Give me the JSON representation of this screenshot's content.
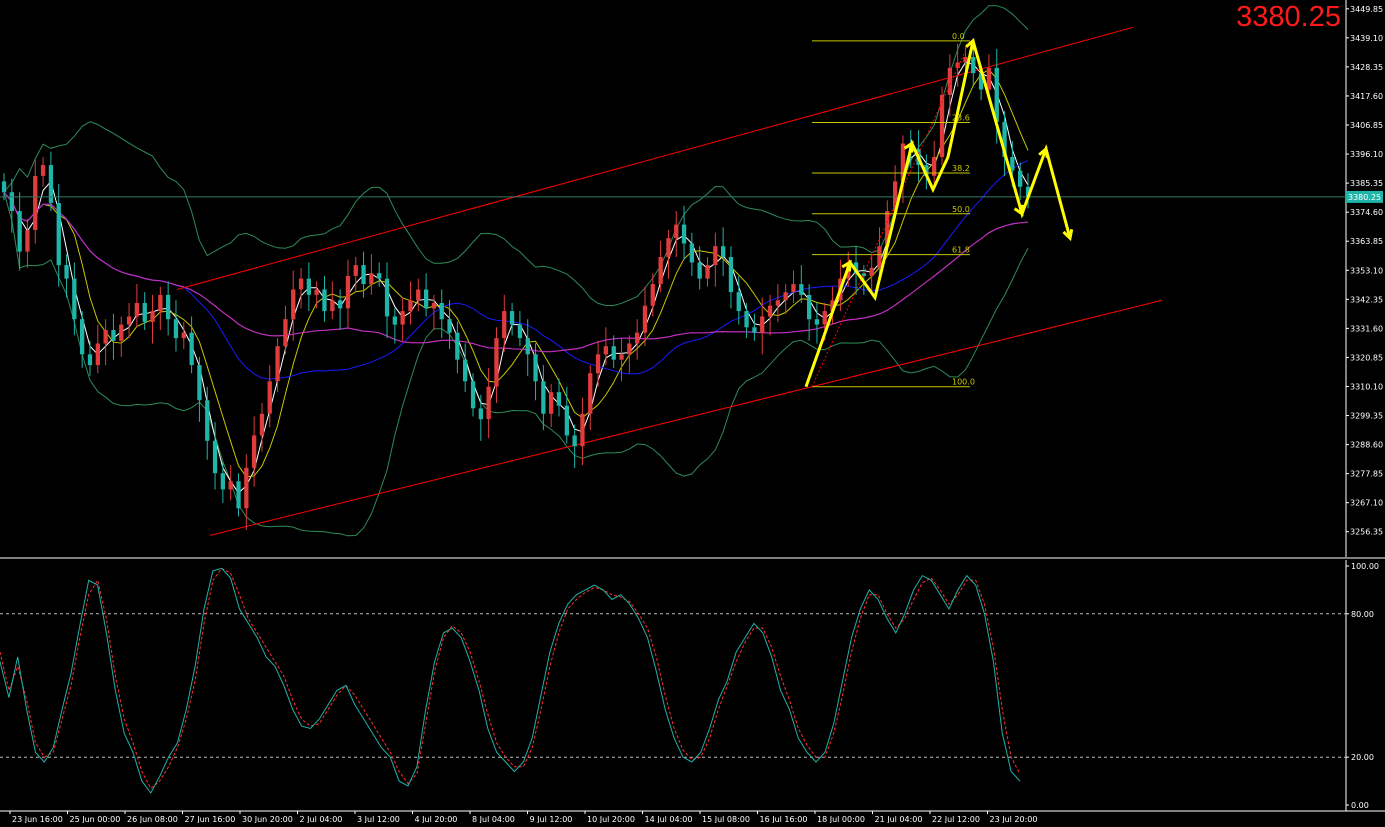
{
  "price_display": "3380.25",
  "current_price_label": "3380.25",
  "colors": {
    "background": "#000000",
    "bull_candle": "#e03c3c",
    "bear_candle": "#1fb5a8",
    "channel": "#ff0000",
    "fib": "#c8c800",
    "bollinger": "#2e8b57",
    "ma_fast": "#ffffff",
    "ma_mid": "#c8c800",
    "ma_blue": "#1a1aff",
    "ma_magenta": "#c030c0",
    "forecast_arrow": "#ffff00",
    "stoch_main": "#20b2aa",
    "stoch_signal": "#ff3030"
  },
  "chart_data": [
    {
      "type": "candlestick",
      "title": "",
      "price_axis_ticks": [
        "3449.85",
        "3439.10",
        "3428.35",
        "3417.60",
        "3406.85",
        "3396.10",
        "3385.35",
        "3374.60",
        "3363.85",
        "3353.10",
        "3342.35",
        "3331.60",
        "3320.85",
        "3310.10",
        "3299.35",
        "3288.60",
        "3277.85",
        "3267.10",
        "3256.35"
      ],
      "ylim": [
        3247,
        3452
      ],
      "time_axis_labels": [
        "23 Jun 16:00",
        "25 Jun 00:00",
        "26 Jun 08:00",
        "27 Jun 16:00",
        "30 Jun 20:00",
        "2 Jul 04:00",
        "3 Jul 12:00",
        "4 Jul 20:00",
        "8 Jul 04:00",
        "9 Jul 12:00",
        "10 Jul 20:00",
        "14 Jul 04:00",
        "15 Jul 08:00",
        "16 Jul 16:00",
        "18 Jul 00:00",
        "21 Jul 04:00",
        "22 Jul 12:00",
        "23 Jul 20:00"
      ],
      "close": [
        3382,
        3375,
        3360,
        3368,
        3388,
        3392,
        3378,
        3355,
        3350,
        3335,
        3322,
        3318,
        3326,
        3331,
        3327,
        3333,
        3336,
        3341,
        3334,
        3338,
        3344,
        3335,
        3328,
        3330,
        3318,
        3305,
        3290,
        3278,
        3272,
        3275,
        3265,
        3280,
        3292,
        3300,
        3312,
        3325,
        3335,
        3346,
        3350,
        3344,
        3346,
        3338,
        3342,
        3339,
        3351,
        3355,
        3348,
        3352,
        3350,
        3336,
        3333,
        3338,
        3342,
        3346,
        3339,
        3341,
        3335,
        3330,
        3320,
        3312,
        3302,
        3298,
        3310,
        3328,
        3338,
        3333,
        3328,
        3322,
        3312,
        3300,
        3308,
        3303,
        3292,
        3288,
        3300,
        3315,
        3322,
        3325,
        3320,
        3322,
        3326,
        3330,
        3340,
        3348,
        3358,
        3365,
        3370,
        3363,
        3356,
        3350,
        3355,
        3362,
        3358,
        3345,
        3338,
        3332,
        3330,
        3336,
        3340,
        3342,
        3345,
        3348,
        3344,
        3335,
        3333,
        3338,
        3342,
        3350,
        3356,
        3352,
        3351,
        3354,
        3362,
        3375,
        3386,
        3400,
        3398,
        3392,
        3388,
        3395,
        3418,
        3428,
        3430,
        3432,
        3426,
        3420,
        3428,
        3408,
        3395,
        3390,
        3384,
        3380
      ],
      "fibonacci_levels": [
        "0.0",
        "23.6",
        "38.2",
        "50.0",
        "61.8",
        "100.0"
      ],
      "indicators": [
        "Bollinger Bands",
        "Moving Averages",
        "Price Channel",
        "Fibonacci Retracement",
        "Projected Path"
      ]
    },
    {
      "type": "line",
      "title": "",
      "ticks": [
        "100.00",
        "80.00",
        "20.00",
        "0.00"
      ],
      "ylim": [
        0,
        100
      ],
      "levels": [
        80,
        20
      ],
      "series": [
        {
          "values": [
            60,
            45,
            62,
            40,
            22,
            18,
            24,
            40,
            55,
            75,
            94,
            92,
            72,
            48,
            30,
            22,
            10,
            5,
            12,
            20,
            26,
            40,
            58,
            82,
            98,
            99,
            95,
            82,
            76,
            70,
            62,
            58,
            50,
            40,
            33,
            32,
            36,
            42,
            48,
            50,
            42,
            36,
            30,
            24,
            20,
            10,
            8,
            16,
            40,
            60,
            72,
            74,
            70,
            60,
            48,
            32,
            22,
            18,
            14,
            18,
            28,
            46,
            64,
            76,
            84,
            88,
            90,
            92,
            90,
            86,
            88,
            84,
            78,
            70,
            56,
            40,
            28,
            20,
            18,
            22,
            32,
            44,
            52,
            64,
            70,
            76,
            72,
            62,
            48,
            40,
            28,
            22,
            18,
            22,
            34,
            52,
            70,
            82,
            90,
            86,
            78,
            72,
            80,
            90,
            96,
            94,
            88,
            82,
            90,
            96,
            92,
            80,
            60,
            30,
            14,
            10
          ]
        },
        {
          "values": [
            64,
            48,
            58,
            44,
            26,
            20,
            22,
            36,
            50,
            70,
            88,
            94,
            78,
            54,
            36,
            26,
            14,
            7,
            10,
            16,
            24,
            36,
            52,
            76,
            94,
            99,
            97,
            88,
            78,
            72,
            66,
            60,
            54,
            44,
            36,
            33,
            34,
            40,
            46,
            50,
            46,
            40,
            34,
            28,
            22,
            14,
            9,
            13,
            34,
            56,
            70,
            75,
            72,
            64,
            52,
            38,
            26,
            20,
            16,
            16,
            24,
            40,
            58,
            72,
            82,
            86,
            89,
            91,
            90,
            88,
            87,
            85,
            80,
            74,
            62,
            46,
            32,
            23,
            19,
            20,
            28,
            40,
            50,
            60,
            68,
            74,
            74,
            66,
            54,
            44,
            32,
            25,
            20,
            20,
            30,
            46,
            64,
            78,
            88,
            88,
            80,
            74,
            78,
            86,
            93,
            95,
            90,
            84,
            88,
            94,
            94,
            84,
            66,
            40,
            20,
            13
          ]
        }
      ]
    }
  ]
}
